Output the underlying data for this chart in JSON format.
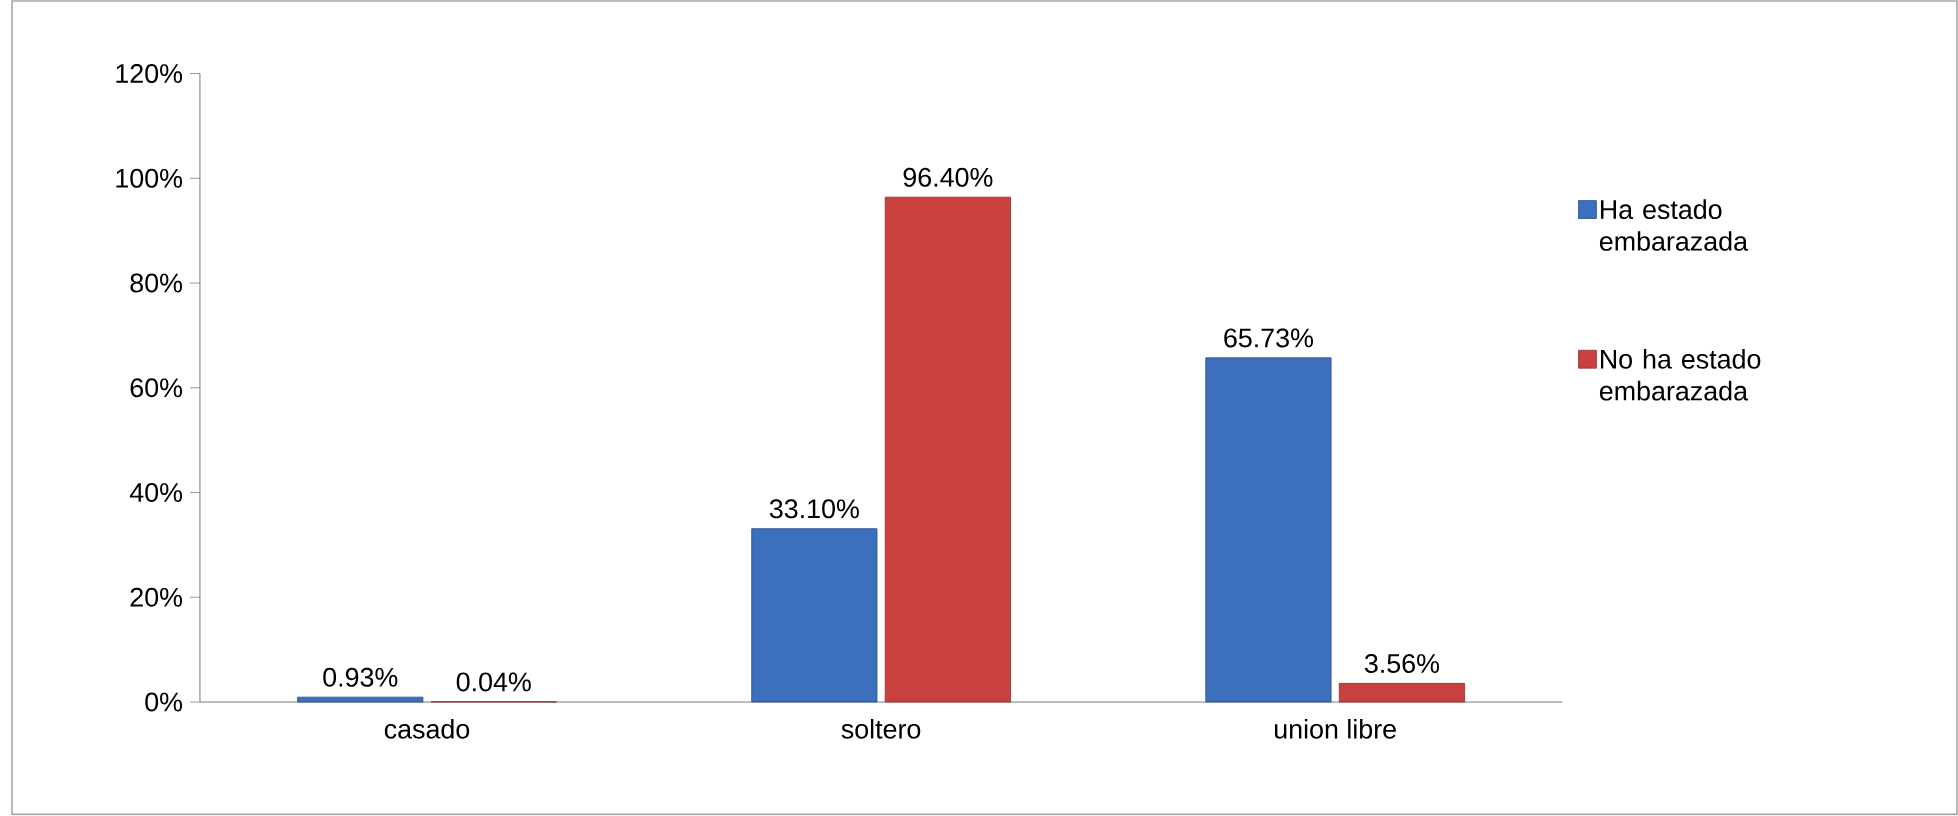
{
  "chart_data": {
    "type": "bar",
    "categories": [
      "casado",
      "soltero",
      "union libre"
    ],
    "series": [
      {
        "name": "Ha estado embarazada",
        "color": "#3c6fbe",
        "values": [
          0.93,
          33.1,
          65.73
        ],
        "value_labels": [
          "0.93%",
          "33.10%",
          "65.73%"
        ]
      },
      {
        "name": "No ha estado embarazada",
        "color": "#c9413f",
        "values": [
          0.04,
          96.4,
          3.56
        ],
        "value_labels": [
          "0.04%",
          "96.40%",
          "3.56%"
        ]
      }
    ],
    "ylim": [
      0,
      120
    ],
    "yticks": [
      {
        "value": 0,
        "label": "0%"
      },
      {
        "value": 20,
        "label": "20%"
      },
      {
        "value": 40,
        "label": "40%"
      },
      {
        "value": 60,
        "label": "60%"
      },
      {
        "value": 80,
        "label": "80%"
      },
      {
        "value": 100,
        "label": "100%"
      },
      {
        "value": 120,
        "label": "120%"
      }
    ],
    "grid": false,
    "legend": "right"
  }
}
